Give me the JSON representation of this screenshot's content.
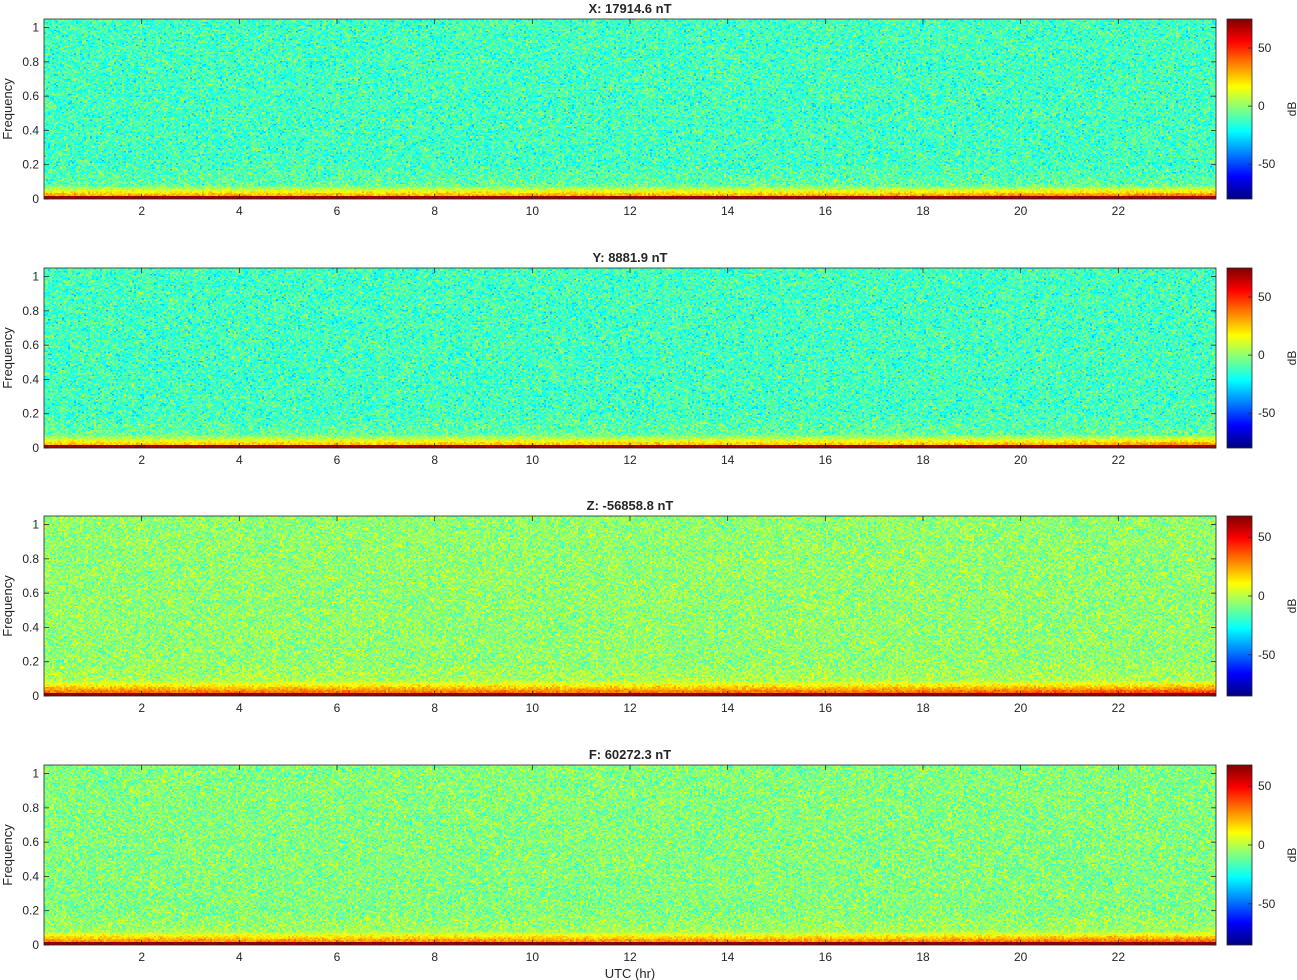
{
  "figure": {
    "xlabel": "UTC (hr)",
    "ylabel": "Frequency",
    "colorbar_label": "dB"
  },
  "chart_data": [
    {
      "type": "heatmap",
      "title": "X: 17914.6 nT",
      "xlabel": "",
      "ylabel": "Frequency",
      "xlim": [
        0,
        24
      ],
      "ylim": [
        0,
        1.05
      ],
      "xticks": [
        2,
        4,
        6,
        8,
        10,
        12,
        14,
        16,
        18,
        20,
        22
      ],
      "yticks": [
        0,
        0.2,
        0.4,
        0.6,
        0.8,
        1
      ],
      "colormap": "jet",
      "colorbar": {
        "label": "dB",
        "range": [
          -80,
          75
        ],
        "ticks": [
          -50,
          0,
          50
        ]
      },
      "background_level_db": -12,
      "low_freq_band": {
        "freq_upper": 0.08,
        "peak_db": 70,
        "mid_db": 35
      },
      "noise_std_db": 11
    },
    {
      "type": "heatmap",
      "title": "Y: 8881.9 nT",
      "xlabel": "",
      "ylabel": "Frequency",
      "xlim": [
        0,
        24
      ],
      "ylim": [
        0,
        1.05
      ],
      "xticks": [
        2,
        4,
        6,
        8,
        10,
        12,
        14,
        16,
        18,
        20,
        22
      ],
      "yticks": [
        0,
        0.2,
        0.4,
        0.6,
        0.8,
        1
      ],
      "colormap": "jet",
      "colorbar": {
        "label": "dB",
        "range": [
          -80,
          75
        ],
        "ticks": [
          -50,
          0,
          50
        ]
      },
      "background_level_db": -12,
      "low_freq_band": {
        "freq_upper": 0.08,
        "peak_db": 70,
        "mid_db": 30
      },
      "noise_std_db": 11
    },
    {
      "type": "heatmap",
      "title": "Z: -56858.8 nT",
      "xlabel": "",
      "ylabel": "Frequency",
      "xlim": [
        0,
        24
      ],
      "ylim": [
        0,
        1.05
      ],
      "xticks": [
        2,
        4,
        6,
        8,
        10,
        12,
        14,
        16,
        18,
        20,
        22
      ],
      "yticks": [
        0,
        0.2,
        0.4,
        0.6,
        0.8,
        1
      ],
      "colormap": "jet",
      "colorbar": {
        "label": "dB",
        "range": [
          -85,
          68
        ],
        "ticks": [
          -50,
          0,
          50
        ]
      },
      "background_level_db": -6,
      "low_freq_band": {
        "freq_upper": 0.09,
        "peak_db": 65,
        "mid_db": 35
      },
      "noise_std_db": 10
    },
    {
      "type": "heatmap",
      "title": "F: 60272.3 nT",
      "xlabel": "UTC (hr)",
      "ylabel": "Frequency",
      "xlim": [
        0,
        24
      ],
      "ylim": [
        0,
        1.05
      ],
      "xticks": [
        2,
        4,
        6,
        8,
        10,
        12,
        14,
        16,
        18,
        20,
        22
      ],
      "yticks": [
        0,
        0.2,
        0.4,
        0.6,
        0.8,
        1
      ],
      "colormap": "jet",
      "colorbar": {
        "label": "dB",
        "range": [
          -85,
          68
        ],
        "ticks": [
          -50,
          0,
          50
        ]
      },
      "background_level_db": -8,
      "low_freq_band": {
        "freq_upper": 0.08,
        "peak_db": 65,
        "mid_db": 32
      },
      "noise_std_db": 10
    }
  ]
}
